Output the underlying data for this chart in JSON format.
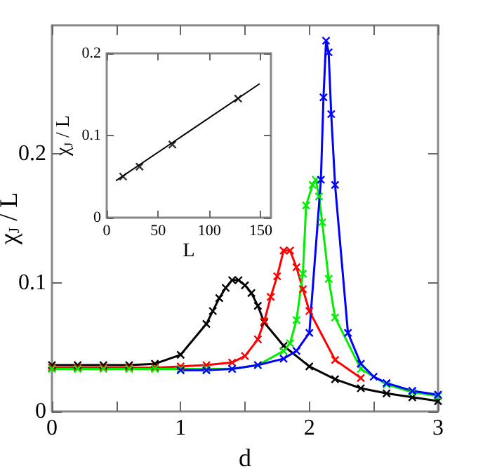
{
  "chart_data": [
    {
      "type": "line",
      "xlabel": "d",
      "ylabel": "χ$_{J}$ / L",
      "xlim": [
        0,
        3
      ],
      "ylim": [
        0,
        0.3
      ],
      "xticks": [
        0,
        {
          "value": 0.5,
          "label": null
        },
        1,
        {
          "value": 1.5,
          "label": null
        },
        2,
        {
          "value": 2.5,
          "label": null
        },
        3
      ],
      "yticks": [
        0,
        0.1,
        0.2
      ],
      "grid": false,
      "marker": "cross",
      "line_style": "solid",
      "series": [
        {
          "color": "#000000",
          "x": [
            0,
            0.2,
            0.4,
            0.6,
            0.8,
            1.0,
            1.2,
            1.25,
            1.3,
            1.35,
            1.4,
            1.45,
            1.5,
            1.55,
            1.6,
            1.65,
            1.8,
            2.0,
            2.2,
            2.4,
            2.6,
            2.8,
            3.0
          ],
          "values": [
            0.036,
            0.036,
            0.036,
            0.036,
            0.037,
            0.044,
            0.068,
            0.078,
            0.088,
            0.096,
            0.102,
            0.102,
            0.098,
            0.092,
            0.082,
            0.069,
            0.051,
            0.035,
            0.025,
            0.018,
            0.014,
            0.011,
            0.008
          ]
        },
        {
          "color": "#ff0000",
          "x": [
            0,
            0.2,
            0.4,
            0.6,
            0.8,
            1.0,
            1.2,
            1.4,
            1.5,
            1.6,
            1.65,
            1.7,
            1.75,
            1.8,
            1.85,
            1.9,
            1.95,
            2.0,
            2.2,
            2.4
          ],
          "values": [
            0.034,
            0.034,
            0.034,
            0.034,
            0.034,
            0.035,
            0.036,
            0.038,
            0.043,
            0.056,
            0.07,
            0.089,
            0.105,
            0.125,
            0.125,
            0.112,
            0.095,
            0.078,
            0.04,
            0.026
          ]
        },
        {
          "color": "#00ee00",
          "x": [
            0,
            0.2,
            0.4,
            0.6,
            0.8,
            1.0,
            1.2,
            1.4,
            1.6,
            1.8,
            1.85,
            1.9,
            1.95,
            1.975,
            2.025,
            2.05,
            2.075,
            2.1,
            2.15,
            2.2,
            2.4,
            2.6,
            2.8,
            3.0
          ],
          "values": [
            0.033,
            0.033,
            0.033,
            0.033,
            0.033,
            0.033,
            0.033,
            0.033,
            0.036,
            0.047,
            0.053,
            0.071,
            0.107,
            0.16,
            0.176,
            0.18,
            0.167,
            0.147,
            0.103,
            0.073,
            0.033,
            0.021,
            0.015,
            0.012
          ]
        },
        {
          "color": "#0000ff",
          "x": [
            1.0,
            1.2,
            1.4,
            1.6,
            1.8,
            1.9,
            2.0,
            2.09,
            2.11,
            2.13,
            2.15,
            2.17,
            2.2,
            2.3,
            2.4,
            2.5,
            2.6,
            2.8,
            3.0
          ],
          "values": [
            0.032,
            0.032,
            0.033,
            0.036,
            0.041,
            0.047,
            0.061,
            0.18,
            0.244,
            0.288,
            0.279,
            0.231,
            0.176,
            0.061,
            0.037,
            0.027,
            0.022,
            0.016,
            0.013
          ]
        }
      ]
    },
    {
      "type": "scatter",
      "xlabel": "L",
      "ylabel": "χ$_{J}$ / L",
      "xlim": [
        0,
        160
      ],
      "ylim": [
        0,
        0.2
      ],
      "xticks": [
        0,
        50,
        100,
        150
      ],
      "yticks": [
        0,
        0.1,
        0.2
      ],
      "grid": false,
      "marker": "cross",
      "series": [
        {
          "color": "#000000",
          "x": [
            16,
            32,
            64,
            128
          ],
          "values": [
            0.05,
            0.062,
            0.089,
            0.145
          ]
        },
        {
          "type": "line",
          "marker": "none",
          "color": "#000000",
          "x": [
            9,
            149
          ],
          "values": [
            0.045,
            0.163
          ]
        }
      ]
    }
  ]
}
